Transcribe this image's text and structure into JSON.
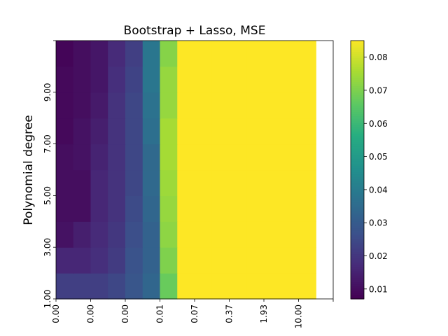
{
  "chart_data": {
    "type": "heatmap",
    "title": "Bootstrap + Lasso, MSE",
    "xlabel": "",
    "ylabel": "Polynomial degree",
    "x_tick_labels": [
      "0.00",
      "0.00",
      "0.00",
      "0.01",
      "0.07",
      "0.37",
      "1.93",
      "10.00",
      ""
    ],
    "y_tick_labels": [
      "1.00",
      "3.00",
      "5.00",
      "7.00",
      "9.00",
      ""
    ],
    "colorbar": {
      "ticks": [
        "0.01",
        "0.02",
        "0.03",
        "0.04",
        "0.05",
        "0.06",
        "0.07",
        "0.08"
      ],
      "tick_values": [
        0.01,
        0.02,
        0.03,
        0.04,
        0.05,
        0.06,
        0.07,
        0.08
      ],
      "range": [
        0.007,
        0.085
      ],
      "colormap": "viridis"
    },
    "n_cols": 16,
    "n_rows": 10,
    "data_cols": 15,
    "rows_bottom_to_top": [
      [
        0.022,
        0.022,
        0.022,
        0.024,
        0.028,
        0.033,
        0.067,
        0.085,
        0.085,
        0.085,
        0.085,
        0.085,
        0.085,
        0.085,
        0.085
      ],
      [
        0.016,
        0.016,
        0.018,
        0.021,
        0.027,
        0.032,
        0.07,
        0.085,
        0.085,
        0.085,
        0.085,
        0.085,
        0.085,
        0.085,
        0.085
      ],
      [
        0.011,
        0.014,
        0.017,
        0.02,
        0.026,
        0.032,
        0.072,
        0.085,
        0.085,
        0.085,
        0.085,
        0.085,
        0.085,
        0.085,
        0.085
      ],
      [
        0.01,
        0.01,
        0.016,
        0.019,
        0.025,
        0.033,
        0.073,
        0.085,
        0.085,
        0.085,
        0.085,
        0.085,
        0.085,
        0.085,
        0.085
      ],
      [
        0.01,
        0.01,
        0.016,
        0.019,
        0.024,
        0.034,
        0.074,
        0.085,
        0.085,
        0.085,
        0.085,
        0.085,
        0.085,
        0.085,
        0.085
      ],
      [
        0.01,
        0.011,
        0.015,
        0.019,
        0.024,
        0.034,
        0.075,
        0.085,
        0.085,
        0.085,
        0.085,
        0.085,
        0.085,
        0.085,
        0.085
      ],
      [
        0.009,
        0.011,
        0.014,
        0.019,
        0.024,
        0.036,
        0.075,
        0.085,
        0.085,
        0.085,
        0.085,
        0.085,
        0.085,
        0.085,
        0.085
      ],
      [
        0.009,
        0.01,
        0.013,
        0.019,
        0.024,
        0.037,
        0.073,
        0.085,
        0.085,
        0.085,
        0.085,
        0.085,
        0.085,
        0.085,
        0.085
      ],
      [
        0.009,
        0.01,
        0.012,
        0.018,
        0.023,
        0.038,
        0.073,
        0.085,
        0.085,
        0.085,
        0.085,
        0.085,
        0.085,
        0.085,
        0.085
      ],
      [
        0.008,
        0.01,
        0.012,
        0.017,
        0.022,
        0.038,
        0.071,
        0.085,
        0.085,
        0.085,
        0.085,
        0.085,
        0.085,
        0.085,
        0.085
      ]
    ]
  }
}
